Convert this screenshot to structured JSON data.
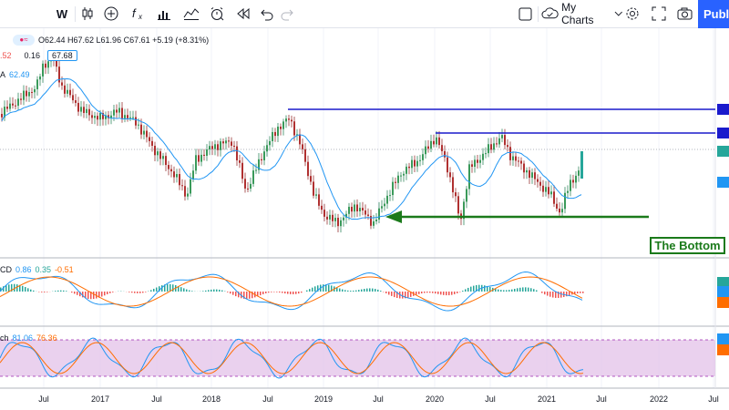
{
  "toolbar": {
    "interval": "W",
    "my_charts": "My Charts",
    "publish": "Publish"
  },
  "legend": {
    "ohlc": "O62.44 H67.62 L61.96 C67.61 +5.19 (+8.31%)",
    "left_value": ".52",
    "vol_value": "0.16",
    "price_pill": "67.68",
    "ma_label": "A",
    "ma_value": "62.49"
  },
  "macd": {
    "label": "CD",
    "v1": "0.86",
    "v2": "0.35",
    "v3": "-0.51"
  },
  "stoch": {
    "label": "ch",
    "v1": "81.06",
    "v2": "76.36"
  },
  "annotation": {
    "bottom_label": "The Bottom"
  },
  "time_axis": [
    "Jul",
    "2017",
    "Jul",
    "2018",
    "Jul",
    "2019",
    "Jul",
    "2020",
    "Jul",
    "2021",
    "Jul",
    "2022",
    "Jul"
  ],
  "colors": {
    "up": "#26a69a",
    "down": "#ef5350",
    "candle_up_dark": "#1a7a4a",
    "candle_down_dark": "#8b1a1a",
    "ma": "#2196f3",
    "resistance": "#1a1acc",
    "bottom": "#1b7a1b",
    "macd_line": "#2196f3",
    "signal_line": "#ff6d00",
    "stoch_band": "#e1bee7"
  }
}
